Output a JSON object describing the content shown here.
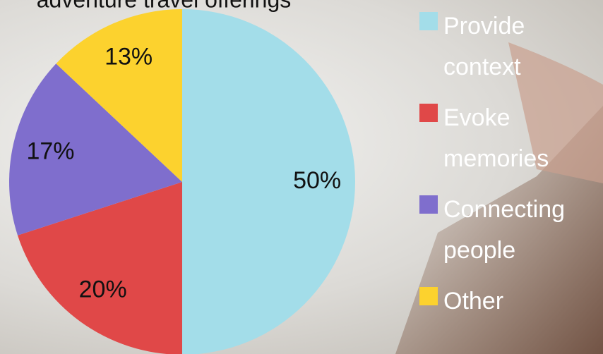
{
  "chart_data": {
    "type": "pie",
    "title": "adventure travel offerings",
    "categories": [
      "Provide context",
      "Evoke memories",
      "Connecting people",
      "Other"
    ],
    "values": [
      50,
      20,
      17,
      13
    ],
    "value_labels": [
      "50%",
      "20%",
      "17%",
      "13%"
    ],
    "colors": [
      "#a3dde9",
      "#e04848",
      "#7f6ecd",
      "#fcd22e"
    ]
  }
}
